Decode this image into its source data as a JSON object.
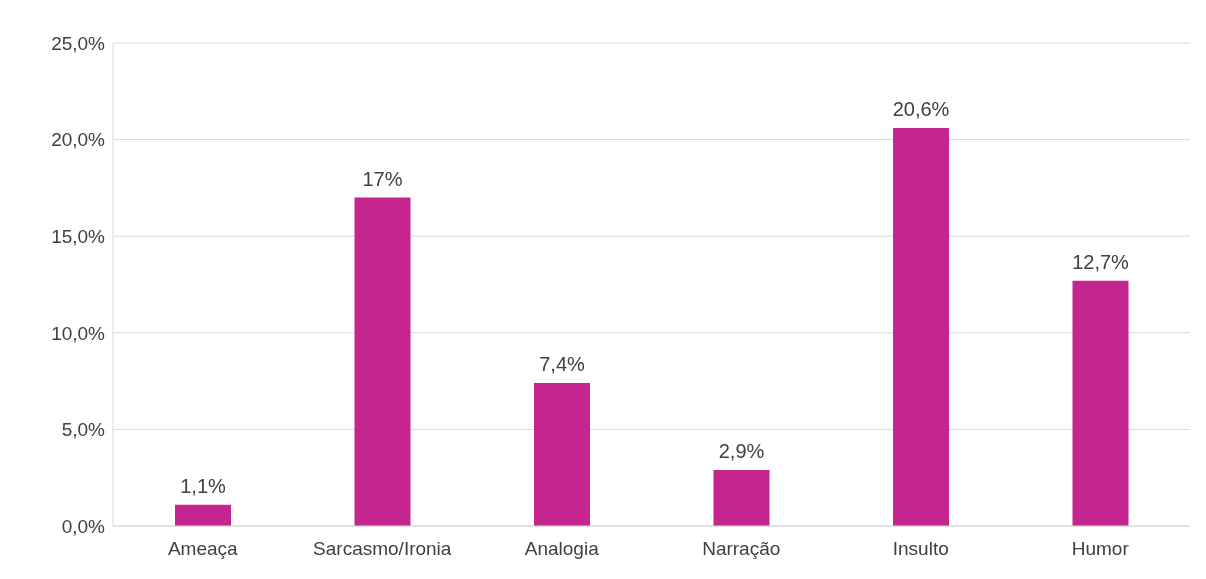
{
  "chart_data": {
    "type": "bar",
    "categories": [
      "Ameaça",
      "Sarcasmo/Ironia",
      "Analogia",
      "Narração",
      "Insulto",
      "Humor"
    ],
    "values": [
      1.1,
      17,
      7.4,
      2.9,
      20.6,
      12.7
    ],
    "value_labels": [
      "1,1%",
      "17%",
      "7,4%",
      "2,9%",
      "20,6%",
      "12,7%"
    ],
    "color": "#c5258f",
    "ylim": [
      0,
      25
    ],
    "yticks": [
      {
        "value": 0,
        "label": "0,0%"
      },
      {
        "value": 5,
        "label": "5,0%"
      },
      {
        "value": 10,
        "label": "10,0%"
      },
      {
        "value": 15,
        "label": "15,0%"
      },
      {
        "value": 20,
        "label": "20,0%"
      },
      {
        "value": 25,
        "label": "25,0%"
      }
    ],
    "grid": "y",
    "legend": false
  }
}
